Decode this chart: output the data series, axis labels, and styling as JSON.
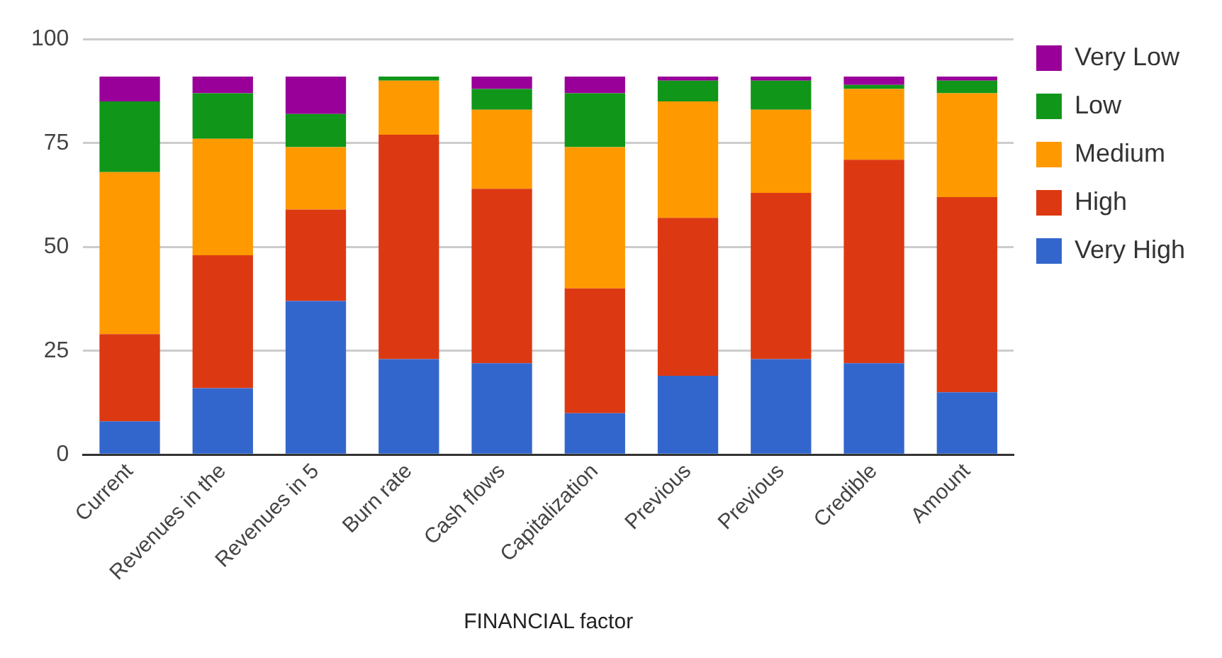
{
  "chart_data": {
    "type": "bar",
    "stacked": true,
    "xlabel": "FINANCIAL factor",
    "categories": [
      "Current",
      "Revenues in the",
      "Revenues in 5",
      "Burn rate",
      "Cash flows",
      "Capitalization",
      "Previous",
      "Previous",
      "Credible",
      "Amount"
    ],
    "series": [
      {
        "name": "Very High",
        "color": "#3366cc",
        "values": [
          8,
          16,
          37,
          23,
          22,
          10,
          19,
          23,
          22,
          15
        ]
      },
      {
        "name": "High",
        "color": "#dc3912",
        "values": [
          21,
          32,
          22,
          54,
          42,
          30,
          38,
          40,
          49,
          47
        ]
      },
      {
        "name": "Medium",
        "color": "#ff9900",
        "values": [
          39,
          28,
          15,
          13,
          19,
          34,
          28,
          20,
          17,
          25
        ]
      },
      {
        "name": "Low",
        "color": "#109618",
        "values": [
          17,
          11,
          8,
          1,
          5,
          13,
          5,
          7,
          1,
          3
        ]
      },
      {
        "name": "Very Low",
        "color": "#990099",
        "values": [
          6,
          4,
          9,
          0,
          3,
          4,
          1,
          1,
          2,
          1
        ]
      }
    ],
    "ylim": [
      0,
      100
    ],
    "yticks": [
      0,
      25,
      50,
      75,
      100
    ],
    "grid": "y",
    "legend": "right"
  }
}
